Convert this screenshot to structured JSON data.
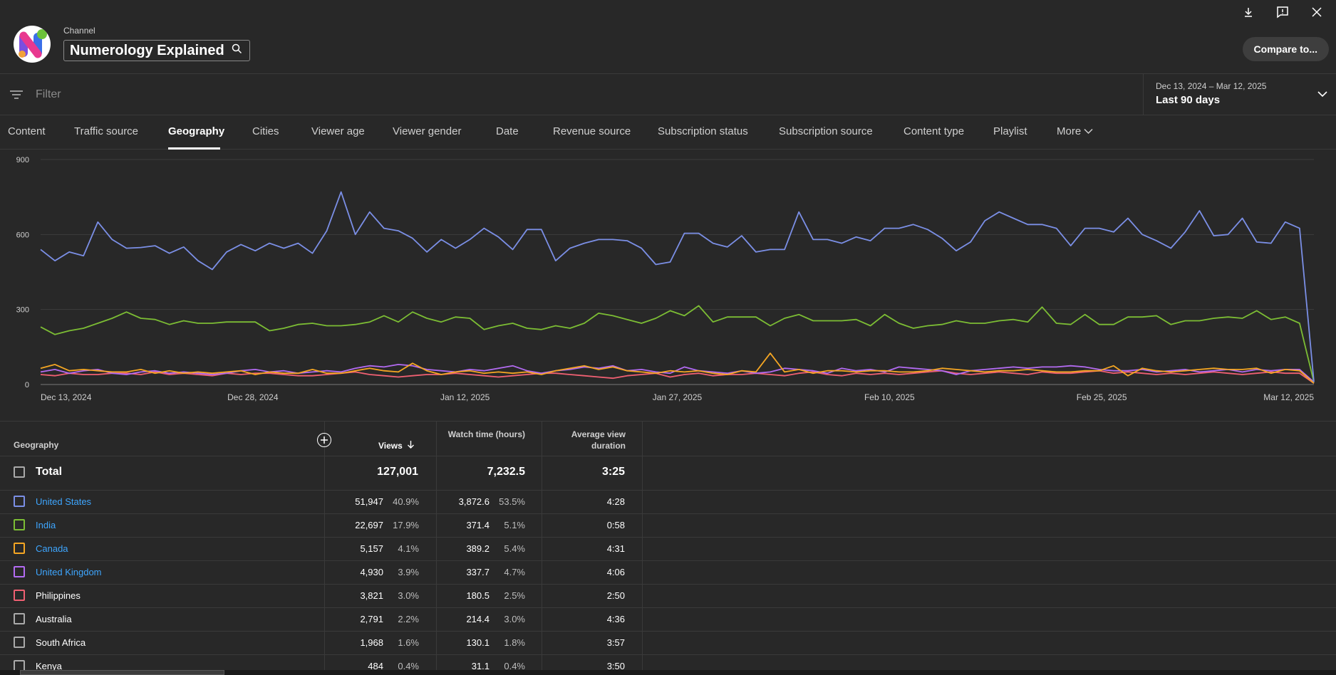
{
  "header": {
    "channel_label": "Channel",
    "channel_name": "Numerology Explained",
    "compare_label": "Compare to..."
  },
  "filter": {
    "placeholder": "Filter",
    "date_range": "Dec 13, 2024 – Mar 12, 2025",
    "date_label": "Last 90 days"
  },
  "tabs": [
    {
      "label": "Content"
    },
    {
      "label": "Traffic source"
    },
    {
      "label": "Geography"
    },
    {
      "label": "Cities"
    },
    {
      "label": "Viewer age"
    },
    {
      "label": "Viewer gender"
    },
    {
      "label": "Date"
    },
    {
      "label": "Revenue source"
    },
    {
      "label": "Subscription status"
    },
    {
      "label": "Subscription source"
    },
    {
      "label": "Content type"
    },
    {
      "label": "Playlist"
    },
    {
      "label": "More"
    }
  ],
  "chart_data": {
    "type": "line",
    "x_tick_labels": [
      "Dec 13, 2024",
      "Dec 28, 2024",
      "Jan 12, 2025",
      "Jan 27, 2025",
      "Feb 10, 2025",
      "Feb 25, 2025",
      "Mar 12, 2025"
    ],
    "y_tick_labels": [
      "900",
      "600",
      "300",
      "0"
    ],
    "ylim": [
      0,
      900
    ],
    "grid": true,
    "series": [
      {
        "color": "#7b8fe6",
        "values": [
          540,
          495,
          530,
          515,
          650,
          580,
          545,
          548,
          555,
          525,
          550,
          495,
          460,
          530,
          560,
          535,
          565,
          545,
          565,
          525,
          615,
          770,
          600,
          690,
          625,
          615,
          585,
          530,
          580,
          545,
          580,
          625,
          590,
          540,
          620,
          620,
          495,
          545,
          565,
          580,
          580,
          575,
          545,
          480,
          490,
          605,
          605,
          565,
          550,
          595,
          530,
          540,
          540,
          690,
          580,
          580,
          565,
          590,
          575,
          625,
          625,
          640,
          620,
          585,
          535,
          570,
          655,
          690,
          665,
          640,
          640,
          625,
          555,
          625,
          625,
          610,
          665,
          600,
          575,
          545,
          610,
          695,
          595,
          600,
          665,
          570,
          565,
          650,
          625,
          10
        ]
      },
      {
        "color": "#7cbd34",
        "values": [
          230,
          200,
          215,
          225,
          245,
          265,
          290,
          265,
          260,
          240,
          255,
          245,
          245,
          250,
          250,
          250,
          215,
          225,
          240,
          245,
          235,
          235,
          240,
          250,
          275,
          250,
          290,
          265,
          250,
          270,
          265,
          220,
          235,
          245,
          225,
          220,
          235,
          225,
          245,
          285,
          275,
          260,
          245,
          265,
          295,
          275,
          315,
          250,
          270,
          270,
          270,
          235,
          265,
          280,
          255,
          255,
          255,
          260,
          235,
          280,
          245,
          225,
          235,
          240,
          255,
          245,
          245,
          255,
          260,
          250,
          310,
          245,
          240,
          280,
          240,
          240,
          270,
          270,
          275,
          240,
          255,
          255,
          265,
          270,
          265,
          295,
          260,
          270,
          245,
          10
        ]
      },
      {
        "color": "#f5a623",
        "values": [
          65,
          80,
          55,
          60,
          55,
          50,
          50,
          60,
          45,
          55,
          45,
          50,
          45,
          50,
          55,
          40,
          50,
          45,
          45,
          60,
          45,
          45,
          55,
          65,
          55,
          50,
          85,
          55,
          40,
          50,
          55,
          45,
          50,
          45,
          50,
          40,
          55,
          65,
          75,
          60,
          70,
          55,
          50,
          45,
          55,
          50,
          55,
          45,
          40,
          55,
          50,
          125,
          50,
          60,
          45,
          55,
          55,
          50,
          55,
          55,
          50,
          50,
          55,
          65,
          60,
          55,
          50,
          55,
          55,
          60,
          55,
          50,
          50,
          55,
          55,
          75,
          35,
          65,
          55,
          50,
          55,
          60,
          65,
          60,
          60,
          65,
          45,
          60,
          55,
          5
        ]
      },
      {
        "color": "#b36bf2",
        "values": [
          50,
          60,
          45,
          55,
          60,
          45,
          40,
          50,
          55,
          45,
          50,
          45,
          40,
          45,
          55,
          60,
          50,
          55,
          45,
          50,
          55,
          50,
          65,
          75,
          70,
          80,
          75,
          60,
          55,
          50,
          60,
          55,
          65,
          75,
          55,
          45,
          55,
          60,
          70,
          65,
          75,
          55,
          60,
          50,
          45,
          70,
          55,
          50,
          45,
          55,
          45,
          50,
          65,
          60,
          55,
          45,
          65,
          55,
          60,
          50,
          70,
          65,
          60,
          55,
          40,
          55,
          60,
          65,
          70,
          65,
          70,
          70,
          75,
          70,
          60,
          55,
          55,
          60,
          50,
          55,
          60,
          50,
          55,
          60,
          50,
          60,
          55,
          60,
          60,
          10
        ]
      },
      {
        "color": "#f06072",
        "values": [
          40,
          35,
          45,
          40,
          40,
          45,
          45,
          40,
          50,
          40,
          45,
          40,
          35,
          45,
          40,
          45,
          45,
          40,
          35,
          35,
          40,
          45,
          50,
          40,
          35,
          30,
          35,
          40,
          40,
          45,
          40,
          35,
          30,
          35,
          40,
          45,
          45,
          40,
          35,
          30,
          25,
          35,
          40,
          45,
          30,
          40,
          45,
          35,
          40,
          40,
          45,
          40,
          35,
          45,
          50,
          40,
          35,
          45,
          40,
          45,
          40,
          45,
          50,
          55,
          45,
          40,
          45,
          50,
          45,
          40,
          50,
          45,
          45,
          50,
          55,
          45,
          50,
          45,
          40,
          45,
          40,
          45,
          50,
          45,
          40,
          45,
          50,
          45,
          45,
          5
        ]
      }
    ]
  },
  "table": {
    "headers": {
      "geography": "Geography",
      "views": "Views",
      "watch_time": "Watch time (hours)",
      "avd": "Average view duration"
    },
    "total": {
      "label": "Total",
      "views": "127,001",
      "watch": "7,232.5",
      "avd": "3:25"
    },
    "rows": [
      {
        "name": "United States",
        "link": true,
        "color": "#7b8fe6",
        "views": "51,947",
        "views_pct": "40.9%",
        "watch": "3,872.6",
        "watch_pct": "53.5%",
        "avd": "4:28"
      },
      {
        "name": "India",
        "link": true,
        "color": "#7cbd34",
        "views": "22,697",
        "views_pct": "17.9%",
        "watch": "371.4",
        "watch_pct": "5.1%",
        "avd": "0:58"
      },
      {
        "name": "Canada",
        "link": true,
        "color": "#f5a623",
        "views": "5,157",
        "views_pct": "4.1%",
        "watch": "389.2",
        "watch_pct": "5.4%",
        "avd": "4:31"
      },
      {
        "name": "United Kingdom",
        "link": true,
        "color": "#b36bf2",
        "views": "4,930",
        "views_pct": "3.9%",
        "watch": "337.7",
        "watch_pct": "4.7%",
        "avd": "4:06"
      },
      {
        "name": "Philippines",
        "link": false,
        "color": "#f06072",
        "views": "3,821",
        "views_pct": "3.0%",
        "watch": "180.5",
        "watch_pct": "2.5%",
        "avd": "2:50"
      },
      {
        "name": "Australia",
        "link": false,
        "color": "#aaaaaa",
        "views": "2,791",
        "views_pct": "2.2%",
        "watch": "214.4",
        "watch_pct": "3.0%",
        "avd": "4:36"
      },
      {
        "name": "South Africa",
        "link": false,
        "color": "#aaaaaa",
        "views": "1,968",
        "views_pct": "1.6%",
        "watch": "130.1",
        "watch_pct": "1.8%",
        "avd": "3:57"
      },
      {
        "name": "Kenya",
        "link": false,
        "color": "#aaaaaa",
        "views": "484",
        "views_pct": "0.4%",
        "watch": "31.1",
        "watch_pct": "0.4%",
        "avd": "3:50"
      }
    ]
  }
}
